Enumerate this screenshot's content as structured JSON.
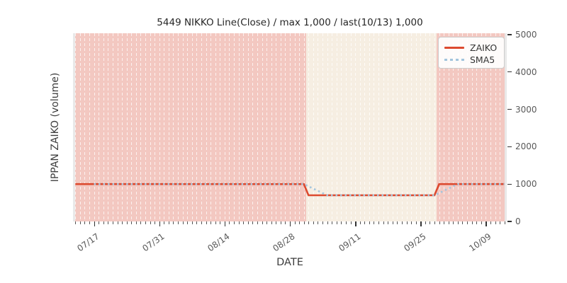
{
  "chart_data": {
    "type": "line",
    "title": "5449 NIKKO Line(Close) / max 1,000 / last(10/13) 1,000",
    "xlabel": "DATE",
    "ylabel": "IPPAN ZAIKO (volume)",
    "ylim": [
      0,
      5000
    ],
    "yticks": [
      0,
      1000,
      2000,
      3000,
      4000,
      5000
    ],
    "x_axis": {
      "start_date": "07/13",
      "end_date": "10/13",
      "total_days": 93,
      "major_ticks": [
        {
          "day": 4,
          "label": "07/17"
        },
        {
          "day": 18,
          "label": "07/31"
        },
        {
          "day": 32,
          "label": "08/14"
        },
        {
          "day": 46,
          "label": "08/28"
        },
        {
          "day": 60,
          "label": "09/11"
        },
        {
          "day": 74,
          "label": "09/25"
        },
        {
          "day": 88,
          "label": "10/09"
        }
      ],
      "minor_tick_every_days": 1,
      "grid": "vertical-dashed-white-per-day"
    },
    "series": [
      {
        "name": "ZAIKO",
        "color": "#dc4a2f",
        "line_style": "solid",
        "line_width": 2.6,
        "points": [
          [
            0,
            1000
          ],
          [
            49,
            1000
          ],
          [
            50,
            700
          ],
          [
            77,
            700
          ],
          [
            78,
            1000
          ],
          [
            92,
            1000
          ]
        ]
      },
      {
        "name": "SMA5",
        "color": "#a3c5dd",
        "line_style": "dotted",
        "line_width": 2.6,
        "points": [
          [
            4,
            1000
          ],
          [
            49,
            1000
          ],
          [
            50,
            940
          ],
          [
            51,
            880
          ],
          [
            52,
            820
          ],
          [
            53,
            760
          ],
          [
            54,
            700
          ],
          [
            77,
            700
          ],
          [
            78,
            760
          ],
          [
            79,
            820
          ],
          [
            80,
            880
          ],
          [
            81,
            940
          ],
          [
            82,
            1000
          ],
          [
            92,
            1000
          ]
        ]
      }
    ],
    "spans": [
      {
        "from_day": 0.5,
        "to_day": 50,
        "color": "#f3c8c1"
      },
      {
        "from_day": 50,
        "to_day": 78,
        "color": "#f6eee2"
      },
      {
        "from_day": 78,
        "to_day": 92.5,
        "color": "#f3c8c1"
      }
    ],
    "plot_background": "#e9e9e9",
    "legend": {
      "position": "top-right",
      "entries": [
        {
          "label": "ZAIKO",
          "swatch": "solid-line",
          "color": "#dc4a2f"
        },
        {
          "label": "SMA5",
          "swatch": "dotted-line",
          "color": "#a3c5dd"
        }
      ]
    }
  }
}
